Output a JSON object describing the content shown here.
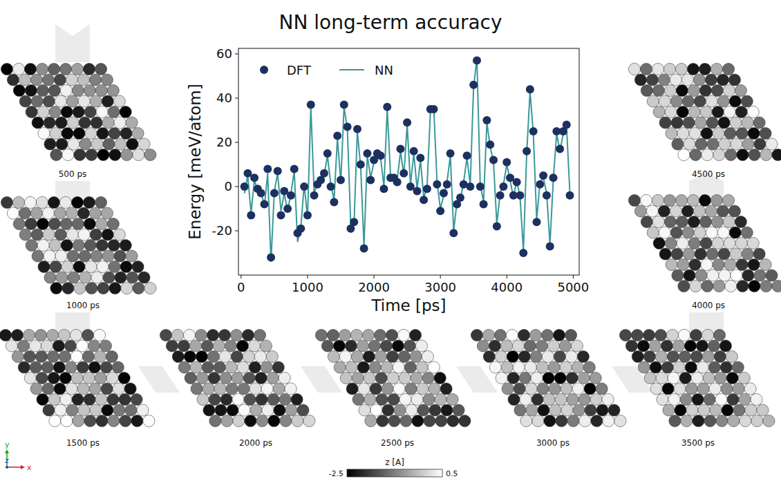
{
  "chart_data": {
    "type": "line",
    "title": "NN long-term accuracy",
    "x_label": "Time [ps]",
    "y_label": "Energy [meV/atom]",
    "x": [
      50,
      100,
      150,
      200,
      250,
      300,
      350,
      400,
      450,
      500,
      550,
      600,
      650,
      700,
      750,
      800,
      850,
      900,
      950,
      1000,
      1050,
      1100,
      1150,
      1200,
      1250,
      1300,
      1350,
      1400,
      1450,
      1500,
      1550,
      1600,
      1650,
      1700,
      1750,
      1800,
      1850,
      1900,
      1950,
      2000,
      2050,
      2100,
      2150,
      2200,
      2250,
      2300,
      2350,
      2400,
      2450,
      2500,
      2550,
      2600,
      2650,
      2700,
      2750,
      2800,
      2850,
      2900,
      2950,
      3000,
      3050,
      3100,
      3150,
      3200,
      3250,
      3300,
      3350,
      3400,
      3450,
      3500,
      3550,
      3600,
      3650,
      3700,
      3750,
      3800,
      3850,
      3900,
      3950,
      4000,
      4050,
      4100,
      4150,
      4200,
      4250,
      4300,
      4350,
      4400,
      4450,
      4500,
      4550,
      4600,
      4650,
      4700,
      4750,
      4800,
      4850,
      4900,
      4950
    ],
    "series": [
      {
        "name": "DFT",
        "type": "scatter",
        "marker": "circle",
        "color": "#1c3160",
        "values": [
          0,
          6,
          -13,
          4,
          -1,
          -3,
          -8,
          8,
          -32,
          -3,
          7,
          -13,
          -2,
          -10,
          -4,
          8,
          -21,
          -19,
          0,
          -13,
          37,
          -4,
          1,
          3,
          6,
          15,
          0,
          -7,
          23,
          3,
          37,
          27,
          -19,
          -16,
          26,
          10,
          -28,
          15,
          3,
          12,
          15,
          14,
          -1,
          36,
          4,
          4,
          2,
          17,
          6,
          29,
          0,
          16,
          -2,
          13,
          -6,
          -1,
          35,
          35,
          1,
          -11,
          -3,
          1,
          15,
          -21,
          -8,
          -5,
          1,
          14,
          0,
          46,
          57,
          0,
          -8,
          30,
          19,
          12,
          -18,
          -4,
          0,
          11,
          4,
          -4,
          2,
          -4,
          -30,
          16,
          44,
          25,
          -16,
          1,
          5,
          -4,
          -27,
          4,
          25,
          17,
          25,
          28,
          -4
        ]
      },
      {
        "name": "NN",
        "type": "line",
        "line_style": "solid",
        "color": "#3a9899",
        "values": [
          -3,
          5,
          -12,
          3,
          -2,
          -2,
          -9,
          6,
          -34,
          -2,
          6,
          -11,
          -3,
          -11,
          -3,
          7,
          -25,
          -18,
          1,
          -14,
          36,
          -3,
          2,
          2,
          5,
          14,
          1,
          -6,
          22,
          2,
          36,
          26,
          -17,
          -17,
          25,
          9,
          -27,
          14,
          4,
          11,
          14,
          13,
          0,
          35,
          5,
          3,
          3,
          16,
          5,
          28,
          1,
          15,
          -1,
          12,
          -5,
          0,
          34,
          36,
          2,
          -10,
          -4,
          2,
          14,
          -20,
          -7,
          -6,
          2,
          13,
          1,
          45,
          58,
          1,
          -7,
          29,
          18,
          11,
          -17,
          -3,
          1,
          10,
          3,
          -5,
          3,
          -5,
          -29,
          15,
          43,
          24,
          -15,
          2,
          4,
          -3,
          -26,
          3,
          24,
          16,
          24,
          27,
          -3
        ]
      }
    ],
    "xlim": [
      -40,
      5090
    ],
    "ylim": [
      -40,
      62.5
    ],
    "xticks": [
      0,
      1000,
      2000,
      3000,
      4000,
      5000
    ],
    "yticks": [
      -20,
      0,
      20,
      40,
      60
    ],
    "legend": "upper left",
    "grid": false
  },
  "snapshots": {
    "labels": [
      "500 ps",
      "1000 ps",
      "1500 ps",
      "2000 ps",
      "2500 ps",
      "3000 ps",
      "3500 ps",
      "4000 ps",
      "4500 ps"
    ]
  },
  "colorbar": {
    "label": "z [A]",
    "range": [
      -2.5,
      0.5
    ],
    "ticks": [
      -2.5,
      0.5
    ]
  },
  "axes_indicator": {
    "x": "x",
    "y": "y",
    "z": "z"
  }
}
